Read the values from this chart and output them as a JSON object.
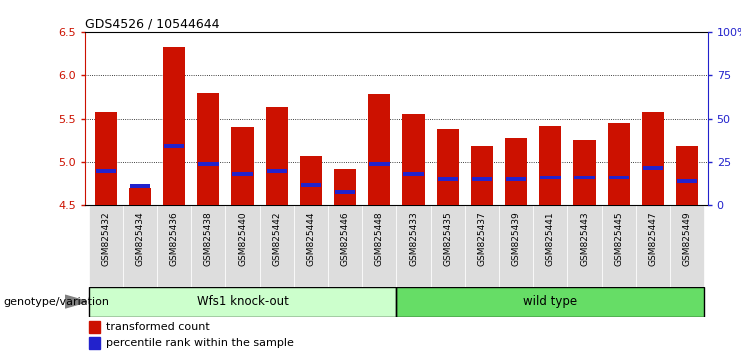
{
  "title": "GDS4526 / 10544644",
  "samples": [
    "GSM825432",
    "GSM825434",
    "GSM825436",
    "GSM825438",
    "GSM825440",
    "GSM825442",
    "GSM825444",
    "GSM825446",
    "GSM825448",
    "GSM825433",
    "GSM825435",
    "GSM825437",
    "GSM825439",
    "GSM825441",
    "GSM825443",
    "GSM825445",
    "GSM825447",
    "GSM825449"
  ],
  "red_values": [
    5.58,
    4.7,
    6.32,
    5.8,
    5.4,
    5.63,
    5.07,
    4.92,
    5.78,
    5.55,
    5.38,
    5.18,
    5.28,
    5.42,
    5.25,
    5.45,
    5.58,
    5.18
  ],
  "blue_values": [
    4.9,
    4.72,
    5.18,
    4.98,
    4.86,
    4.9,
    4.73,
    4.65,
    4.98,
    4.86,
    4.8,
    4.8,
    4.8,
    4.82,
    4.82,
    4.82,
    4.93,
    4.78
  ],
  "group1_label": "Wfs1 knock-out",
  "group2_label": "wild type",
  "group1_count": 9,
  "group2_count": 9,
  "ymin": 4.5,
  "ymax": 6.5,
  "yticks": [
    4.5,
    5.0,
    5.5,
    6.0,
    6.5
  ],
  "right_yticks": [
    0,
    25,
    50,
    75,
    100
  ],
  "right_ytick_labels": [
    "0",
    "25",
    "50",
    "75",
    "100%"
  ],
  "bar_color": "#CC1100",
  "blue_color": "#2222CC",
  "group1_bg": "#CCFFCC",
  "group2_bg": "#66DD66",
  "xtick_bg": "#DDDDDD",
  "bar_width": 0.65,
  "left_axis_color": "#CC1100",
  "right_axis_color": "#2222CC",
  "legend_red_label": "transformed count",
  "legend_blue_label": "percentile rank within the sample",
  "genotype_label": "genotype/variation"
}
